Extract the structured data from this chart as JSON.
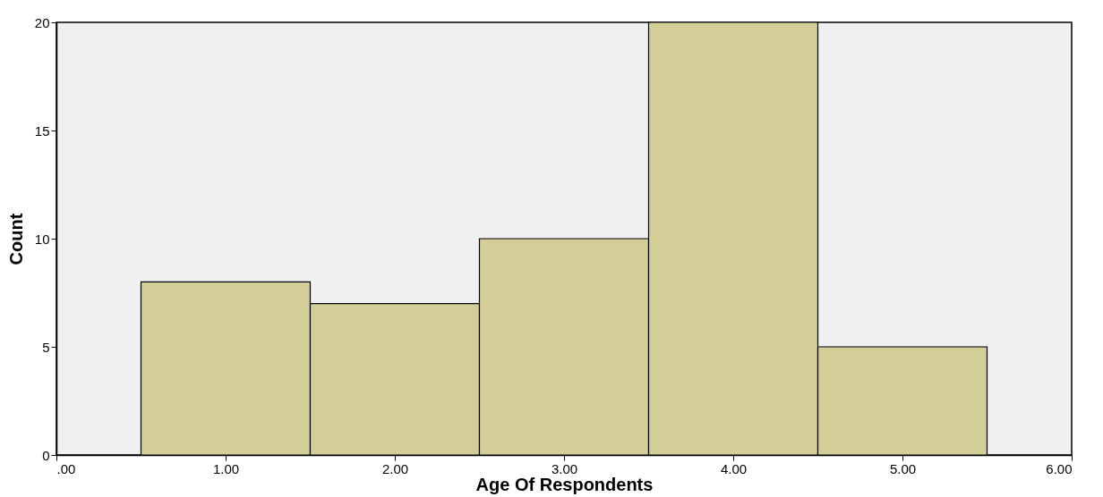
{
  "chart_data": {
    "type": "histogram",
    "xlabel": "Age Of Respondents",
    "ylabel": "Count",
    "bins": [
      0.5,
      1.5,
      2.5,
      3.5,
      4.5,
      5.5
    ],
    "values": [
      8,
      7,
      10,
      20,
      5
    ],
    "color": "#d3ce97",
    "xlim": [
      0,
      6
    ],
    "xticks": [
      {
        "value": 0,
        "label": ".00"
      },
      {
        "value": 1,
        "label": "1.00"
      },
      {
        "value": 2,
        "label": "2.00"
      },
      {
        "value": 3,
        "label": "3.00"
      },
      {
        "value": 4,
        "label": "4.00"
      },
      {
        "value": 5,
        "label": "5.00"
      },
      {
        "value": 6,
        "label": "6.00"
      }
    ],
    "ylim": [
      0,
      20
    ],
    "yticks": [
      0,
      5,
      10,
      15,
      20
    ],
    "grid": false
  }
}
